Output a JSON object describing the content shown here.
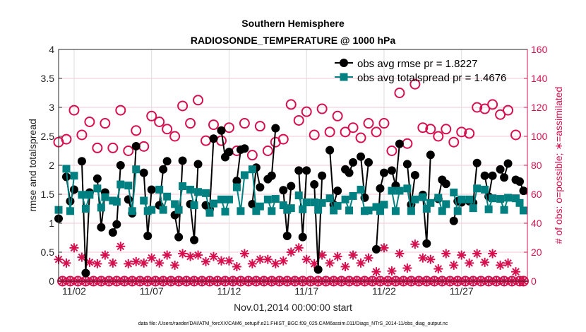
{
  "chart_data": {
    "type": "line",
    "title": [
      "Southern Hemisphere",
      "RADIOSONDE_TEMPERATURE @ 1000 hPa"
    ],
    "xlabel": "Nov.01,2014 00:00:00 start",
    "ylabel": "rmse and totalspread",
    "ylabel_right": "# of obs: o=possible; ∗=assimilated",
    "footer": "data file: /Users/raeder/DAI/ATM_forcXX/CAM6_setup/f.e21.FHIST_BGC.f09_025.CAM6assim.011/Diags_NTrS_2014-11/obs_diag_output.nc",
    "x_step_hours": 6,
    "xlim_days": [
      0,
      30.25
    ],
    "ylim": [
      0,
      4
    ],
    "ylim_right": [
      0,
      160
    ],
    "yticks": [
      "0",
      "0.5",
      "1",
      "1.5",
      "2",
      "2.5",
      "3",
      "3.5",
      "4"
    ],
    "yticks_right": [
      "0",
      "20",
      "40",
      "60",
      "80",
      "100",
      "120",
      "140",
      "160"
    ],
    "xticks": [
      {
        "day": 1,
        "label": "11/02"
      },
      {
        "day": 6,
        "label": "11/07"
      },
      {
        "day": 11,
        "label": "11/12"
      },
      {
        "day": 16,
        "label": "11/17"
      },
      {
        "day": 21,
        "label": "11/22"
      },
      {
        "day": 26,
        "label": "11/27"
      }
    ],
    "grid": true,
    "legend_placement": "top-right",
    "colors": {
      "rmse": "#000000",
      "spread": "#008080",
      "counts": "#d6104f"
    },
    "series": [
      {
        "name": "obs avg rmse pr = 1.8227",
        "key": "rmse",
        "axis": "left",
        "values": [
          1.08,
          null,
          1.8,
          1.38,
          1.58,
          null,
          2.07,
          0.14,
          1.53,
          null,
          1.77,
          0.93,
          1.53,
          null,
          0.84,
          0.98,
          2.0,
          null,
          1.41,
          1.17,
          2.33,
          null,
          1.87,
          0.78,
          1.58,
          null,
          1.31,
          1.93,
          2.07,
          null,
          1.14,
          0.76,
          2.08,
          null,
          1.33,
          0.71,
          2.02,
          null,
          1.31,
          1.24,
          2.46,
          null,
          2.6,
          2.14,
          2.23,
          null,
          1.73,
          2.27,
          2.29,
          null,
          1.33,
          1.96,
          1.62,
          null,
          1.76,
          1.82,
          2.64,
          null,
          1.57,
          0.78,
          1.64,
          null,
          1.91,
          0.76,
          1.91,
          null,
          1.67,
          0.2,
          1.82,
          null,
          2.26,
          1.32,
          1.56,
          null,
          1.93,
          1.87,
          2.05,
          null,
          2.15,
          1.44,
          2.05,
          null,
          0.55,
          1.6,
          1.87,
          null,
          1.91,
          1.65,
          2.37,
          null,
          2.02,
          1.32,
          1.83,
          null,
          1.49,
          0.65,
          2.18,
          null,
          1.42,
          1.75,
          1.68,
          null,
          1.04,
          1.38,
          1.36,
          null,
          1.38,
          1.35,
          2.04,
          null,
          1.82,
          1.46,
          1.82,
          null,
          1.93,
          1.79,
          2.03,
          null,
          1.75,
          1.72,
          1.56
        ]
      },
      {
        "name": "obs avg totalspread pr = 1.4676",
        "key": "spread",
        "axis": "left",
        "values": [
          1.23,
          null,
          1.94,
          1.21,
          1.82,
          null,
          1.49,
          1.25,
          1.49,
          null,
          1.6,
          1.27,
          1.45,
          null,
          1.39,
          1.37,
          1.67,
          null,
          1.65,
          1.21,
          1.93,
          null,
          1.39,
          1.21,
          1.23,
          null,
          1.58,
          1.23,
          1.46,
          null,
          1.33,
          1.23,
          1.64,
          null,
          1.58,
          1.31,
          1.54,
          null,
          1.52,
          1.18,
          1.34,
          null,
          1.41,
          1.2,
          1.41,
          null,
          1.62,
          1.21,
          1.83,
          null,
          1.93,
          1.21,
          1.29,
          null,
          1.41,
          1.21,
          1.42,
          null,
          1.31,
          1.23,
          1.26,
          null,
          1.48,
          1.24,
          1.36,
          null,
          1.36,
          1.23,
          1.35,
          null,
          1.43,
          1.22,
          1.3,
          null,
          1.41,
          1.22,
          1.47,
          null,
          1.58,
          1.21,
          1.22,
          null,
          1.28,
          1.21,
          1.32,
          null,
          1.56,
          1.21,
          1.56,
          null,
          1.6,
          1.21,
          1.41,
          null,
          1.45,
          1.25,
          1.35,
          null,
          1.44,
          1.21,
          1.33,
          null,
          1.53,
          1.21,
          1.41,
          null,
          1.41,
          1.26,
          1.6,
          null,
          1.58,
          1.24,
          1.43,
          null,
          1.42,
          1.23,
          1.44,
          null,
          1.43,
          1.35,
          1.22
        ]
      },
      {
        "name": "possible",
        "key": "possible",
        "axis": "right",
        "values": [
          96,
          0,
          98,
          0,
          118,
          0,
          101,
          0,
          110,
          0,
          92,
          0,
          109,
          0,
          92,
          0,
          118,
          0,
          90,
          0,
          104,
          0,
          93,
          0,
          114,
          0,
          110,
          0,
          105,
          0,
          100,
          0,
          121,
          0,
          109,
          0,
          125,
          0,
          97,
          0,
          108,
          0,
          97,
          0,
          106,
          0,
          90,
          0,
          109,
          0,
          87,
          0,
          107,
          0,
          90,
          0,
          96,
          0,
          98,
          0,
          122,
          0,
          111,
          0,
          117,
          0,
          101,
          0,
          119,
          0,
          103,
          0,
          114,
          0,
          103,
          0,
          106,
          0,
          99,
          0,
          109,
          0,
          103,
          0,
          109,
          0,
          90,
          0,
          130,
          0,
          95,
          0,
          136,
          0,
          106,
          0,
          105,
          0,
          100,
          0,
          105,
          0,
          96,
          0,
          103,
          0,
          102,
          0,
          120,
          0,
          119,
          0,
          122,
          0,
          115,
          0,
          118,
          0,
          101,
          0,
          0
        ]
      },
      {
        "name": "assimilated",
        "key": "assimilated",
        "axis": "right",
        "values": [
          15,
          0,
          12.5,
          0,
          23,
          0,
          16.5,
          0,
          13,
          0,
          12,
          0,
          18,
          0,
          12.5,
          0,
          24,
          0,
          12,
          0,
          13.5,
          0,
          12.5,
          0,
          16,
          0,
          12.5,
          0,
          18,
          0,
          11,
          0,
          19,
          0,
          17,
          0,
          18,
          0,
          13.5,
          0,
          17,
          0,
          14,
          0,
          14,
          0,
          10,
          0,
          19,
          0,
          12,
          0,
          15,
          0,
          15,
          0,
          12,
          0,
          14,
          0,
          20,
          0,
          23,
          0,
          15,
          0,
          12,
          0,
          18,
          0,
          12.5,
          0,
          17,
          0,
          10,
          0,
          18,
          0,
          12.5,
          0,
          16,
          0,
          6.5,
          0,
          23,
          0,
          7,
          0,
          19,
          0,
          9,
          0,
          25.5,
          0,
          16,
          0,
          15,
          0,
          8.5,
          0,
          19,
          0,
          11,
          0,
          18,
          0,
          12.5,
          0,
          19,
          0,
          13,
          0,
          19,
          0,
          11,
          0,
          12.5,
          0,
          6.5,
          0,
          0
        ]
      }
    ]
  }
}
